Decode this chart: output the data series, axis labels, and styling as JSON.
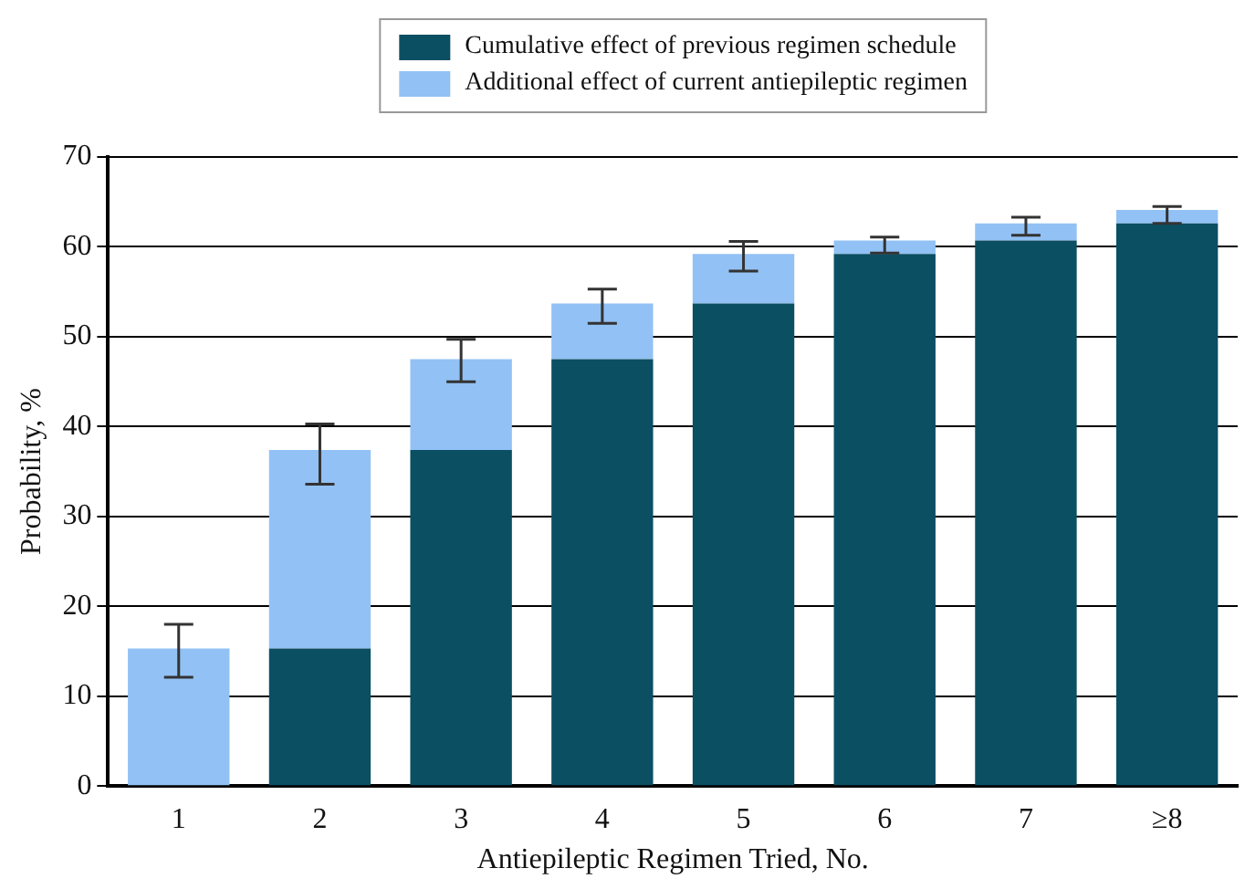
{
  "chart_data": {
    "type": "bar",
    "stacked": true,
    "xlabel": "Antiepileptic Regimen Tried, No.",
    "ylabel": "Probability, %",
    "categories": [
      "1",
      "2",
      "3",
      "4",
      "5",
      "6",
      "7",
      "≥8"
    ],
    "series": [
      {
        "name": "Cumulative effect of previous regimen schedule",
        "color": "#0b4f63",
        "values": [
          0,
          15.3,
          37.4,
          47.5,
          53.7,
          59.2,
          60.7,
          62.6
        ]
      },
      {
        "name": "Additional effect of current antiepileptic regimen",
        "color": "#92c1f5",
        "values": [
          15.3,
          22.1,
          10.1,
          6.2,
          5.5,
          1.5,
          1.9,
          1.5
        ],
        "errors": [
          [
            12.1,
            18.0
          ],
          [
            33.6,
            40.3
          ],
          [
            45.0,
            49.7
          ],
          [
            51.5,
            55.3
          ],
          [
            57.3,
            60.6
          ],
          [
            59.3,
            61.1
          ],
          [
            61.3,
            63.3
          ],
          [
            62.6,
            64.5
          ]
        ]
      }
    ],
    "ylim": [
      0,
      70
    ],
    "yticks": [
      0,
      10,
      20,
      30,
      40,
      50,
      60,
      70
    ],
    "grid": "y",
    "legend": "top"
  }
}
